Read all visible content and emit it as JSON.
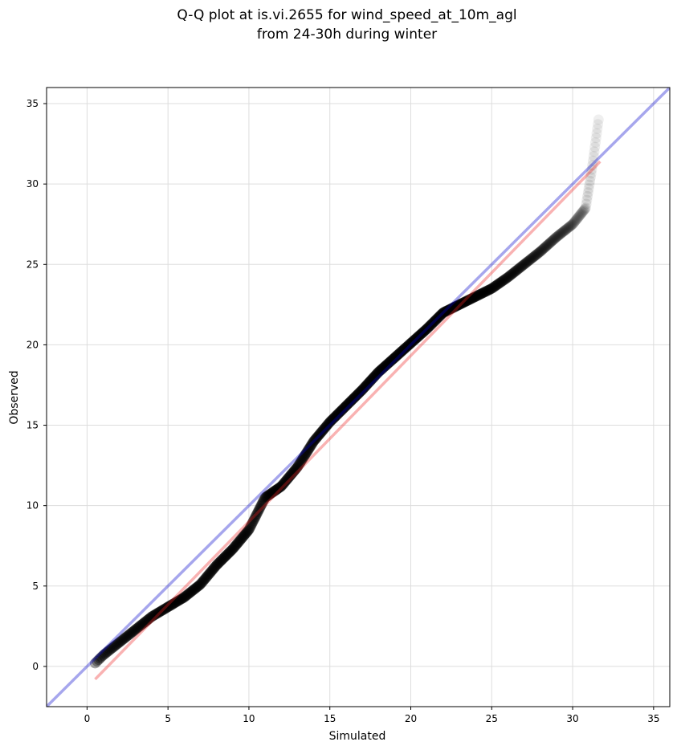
{
  "chart_data": {
    "type": "scatter",
    "title": [
      "Q-Q plot at is.vi.2655 for wind_speed_at_10m_agl",
      "from 24-30h during winter"
    ],
    "xlabel": "Simulated",
    "ylabel": "Observed",
    "xlim": [
      -2.5,
      36
    ],
    "ylim": [
      -2.5,
      36
    ],
    "xticks": [
      0,
      5,
      10,
      15,
      20,
      25,
      30,
      35
    ],
    "yticks": [
      0,
      5,
      10,
      15,
      20,
      25,
      30,
      35
    ],
    "grid": true,
    "colors": {
      "points": "#000000",
      "identity_line": "#0000cc",
      "fit_line": "#ee2222",
      "grid": "#dddddd"
    },
    "reference_lines": [
      {
        "kind": "identity",
        "x": [
          -2.5,
          36
        ],
        "y": [
          -2.5,
          36
        ]
      },
      {
        "kind": "fit",
        "x": [
          0.5,
          31.7
        ],
        "y": [
          -0.8,
          31.4
        ]
      }
    ],
    "quantile_curve": [
      [
        0.5,
        0.2
      ],
      [
        1,
        0.7
      ],
      [
        2,
        1.5
      ],
      [
        3,
        2.3
      ],
      [
        4,
        3.1
      ],
      [
        5,
        3.7
      ],
      [
        6,
        4.3
      ],
      [
        7,
        5.1
      ],
      [
        8,
        6.3
      ],
      [
        9,
        7.3
      ],
      [
        10,
        8.5
      ],
      [
        11,
        10.5
      ],
      [
        12,
        11.2
      ],
      [
        13,
        12.4
      ],
      [
        14,
        14.0
      ],
      [
        15,
        15.2
      ],
      [
        16,
        16.2
      ],
      [
        17,
        17.2
      ],
      [
        18,
        18.3
      ],
      [
        19,
        19.2
      ],
      [
        20,
        20.1
      ],
      [
        21,
        21.0
      ],
      [
        22,
        22.0
      ],
      [
        23,
        22.5
      ],
      [
        24,
        23.0
      ],
      [
        25,
        23.5
      ],
      [
        26,
        24.2
      ],
      [
        27,
        25.0
      ],
      [
        28,
        25.8
      ],
      [
        29,
        26.7
      ],
      [
        30,
        27.5
      ],
      [
        30.8,
        28.5
      ],
      [
        31.2,
        31.0
      ],
      [
        31.6,
        34.0
      ]
    ]
  }
}
